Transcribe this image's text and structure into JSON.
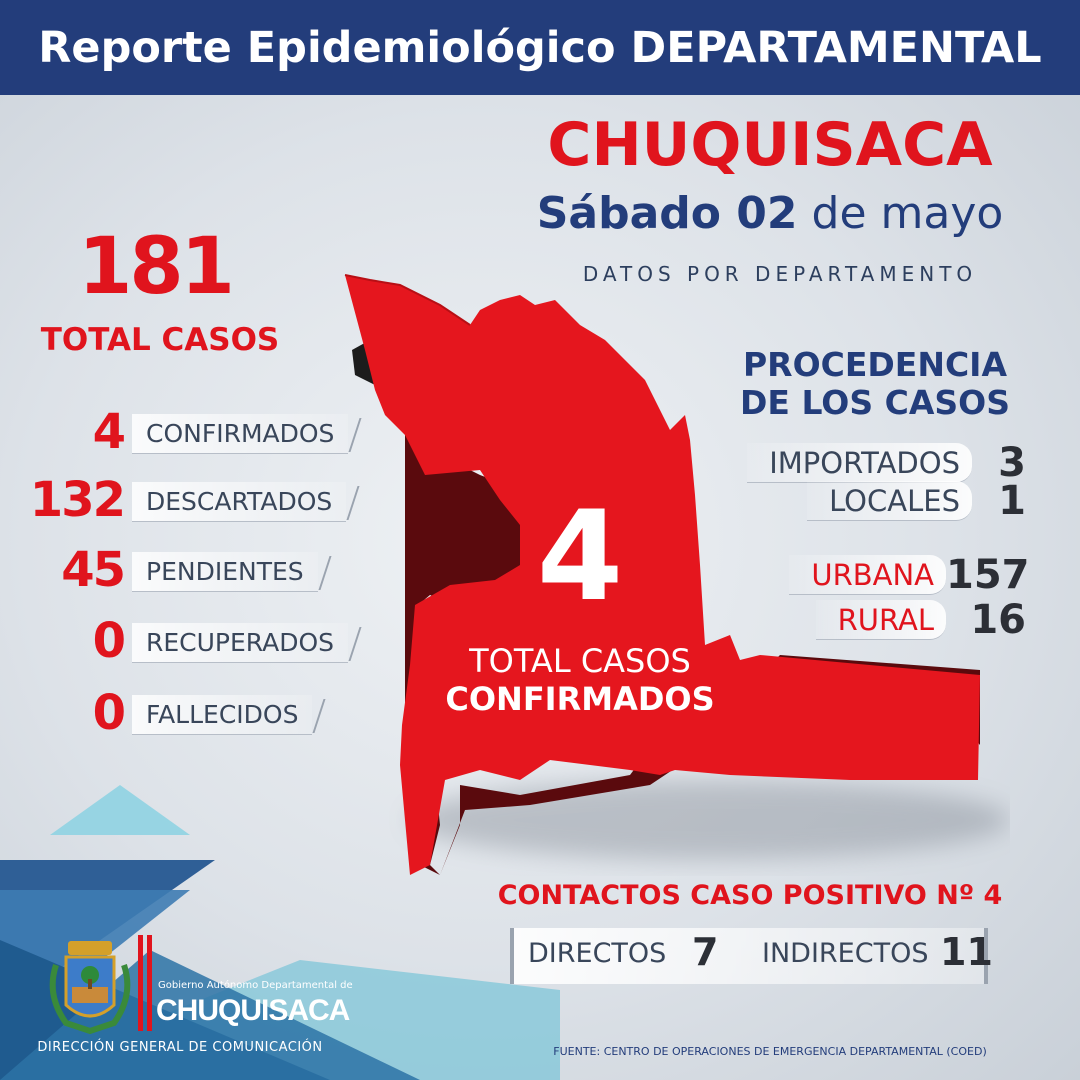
{
  "header": {
    "title": "Reporte Epidemiológico DEPARTAMENTAL"
  },
  "region": {
    "name": "CHUQUISACA",
    "date_bold": "Sábado 02",
    "date_rest": "de mayo",
    "subtitle": "DATOS POR DEPARTAMENTO"
  },
  "totals": {
    "value": "181",
    "label": "TOTAL CASOS"
  },
  "stats": [
    {
      "value": "4",
      "label": "CONFIRMADOS"
    },
    {
      "value": "132",
      "label": "DESCARTADOS"
    },
    {
      "value": "45",
      "label": "PENDIENTES"
    },
    {
      "value": "0",
      "label": "RECUPERADOS"
    },
    {
      "value": "0",
      "label": "FALLECIDOS"
    }
  ],
  "map": {
    "value": "4",
    "label_line1": "TOTAL CASOS",
    "label_line2": "CONFIRMADOS"
  },
  "procedencia": {
    "title_line1": "PROCEDENCIA",
    "title_line2": "DE LOS CASOS",
    "items": [
      {
        "label": "IMPORTADOS",
        "value": "3"
      },
      {
        "label": "LOCALES",
        "value": "1"
      }
    ],
    "area": [
      {
        "label": "URBANA",
        "value": "157"
      },
      {
        "label": "RURAL",
        "value": "16"
      }
    ]
  },
  "contacts": {
    "title": "CONTACTOS CASO POSITIVO Nº 4",
    "directos_label": "DIRECTOS",
    "directos_value": "7",
    "indirectos_label": "INDIRECTOS",
    "indirectos_value": "11"
  },
  "footer": {
    "logo_small": "Gobierno Autónomo Departamental de",
    "logo_big": "CHUQUISACA",
    "dept": "DIRECCIÓN GENERAL DE COMUNICACIÓN",
    "source": "FUENTE: CENTRO DE OPERACIONES DE EMERGENCIA DEPARTAMENTAL (COED)"
  },
  "colors": {
    "brand_blue": "#233d7b",
    "brand_red": "#e0141d",
    "teal": "#6fc3d6"
  }
}
